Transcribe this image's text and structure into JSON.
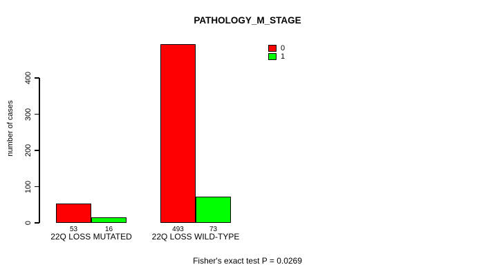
{
  "chart_data": {
    "type": "bar",
    "title": "PATHOLOGY_M_STAGE",
    "ylabel": "number of cases",
    "xlabel": "",
    "categories": [
      "22Q LOSS MUTATED",
      "22Q LOSS WILD-TYPE"
    ],
    "series": [
      {
        "name": "0",
        "color": "#FF0000",
        "values": [
          53,
          493
        ]
      },
      {
        "name": "1",
        "color": "#00FF00",
        "values": [
          16,
          73
        ]
      }
    ],
    "yticks": [
      0,
      100,
      200,
      300,
      400
    ],
    "ylim": [
      0,
      400
    ],
    "grid": false,
    "bar_value_labels": [
      [
        53,
        16
      ],
      [
        493,
        73
      ]
    ],
    "legend_position": "top-right",
    "legend_entries": [
      "0",
      "1"
    ],
    "annotation": "Fisher's exact test P = 0.0269"
  },
  "colors": {
    "series_0": "#FF0000",
    "series_1": "#00FF00",
    "axis": "#000000",
    "background": "#FFFFFF"
  }
}
